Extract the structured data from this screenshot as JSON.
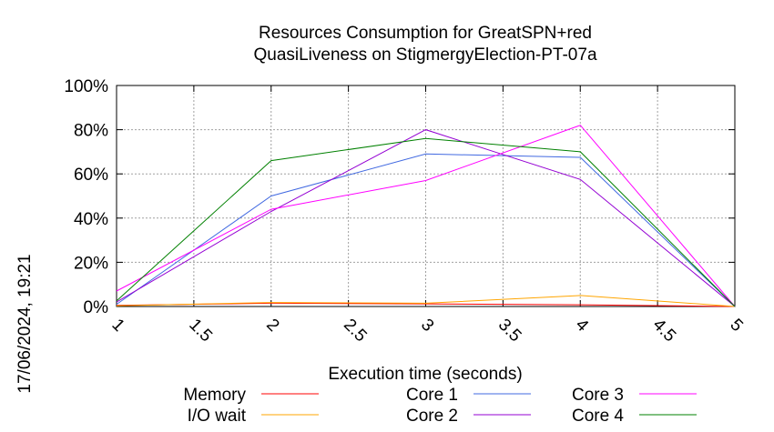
{
  "chart_data": {
    "type": "line",
    "title_line1": "Resources Consumption for GreatSPN+red",
    "title_line2": "QuasiLiveness on StigmergyElection-PT-07a",
    "xlabel": "Execution time (seconds)",
    "ylabel": "",
    "side_label": "17/06/2024, 19:21",
    "x_ticks": [
      "1",
      "1.5",
      "2",
      "2.5",
      "3",
      "3.5",
      "4",
      "4.5",
      "5"
    ],
    "y_ticks": [
      "0%",
      "20%",
      "40%",
      "60%",
      "80%",
      "100%"
    ],
    "xlim": [
      1,
      5
    ],
    "ylim": [
      0,
      100
    ],
    "grid": true,
    "legend_position": "bottom",
    "series": [
      {
        "name": "Memory",
        "color": "#ff0000",
        "x": [
          1,
          2,
          3,
          4,
          5
        ],
        "y": [
          0.5,
          1.5,
          1.2,
          0.8,
          0
        ]
      },
      {
        "name": "I/O wait",
        "color": "#ffa500",
        "x": [
          1,
          2,
          3,
          4,
          5
        ],
        "y": [
          0.3,
          1.8,
          1.5,
          5,
          0
        ]
      },
      {
        "name": "Core 1",
        "color": "#4169e1",
        "x": [
          1,
          2,
          3,
          4,
          5
        ],
        "y": [
          1,
          50,
          69,
          67.5,
          0
        ]
      },
      {
        "name": "Core 2",
        "color": "#9400d3",
        "x": [
          1,
          2,
          3,
          4,
          5
        ],
        "y": [
          2,
          43,
          80,
          57.5,
          0
        ]
      },
      {
        "name": "Core 3",
        "color": "#ff00ff",
        "x": [
          1,
          2,
          3,
          4,
          5
        ],
        "y": [
          7,
          44,
          57,
          82,
          0
        ]
      },
      {
        "name": "Core 4",
        "color": "#008000",
        "x": [
          1,
          2,
          3,
          4,
          5
        ],
        "y": [
          2.5,
          66,
          76,
          70,
          0
        ]
      }
    ]
  }
}
